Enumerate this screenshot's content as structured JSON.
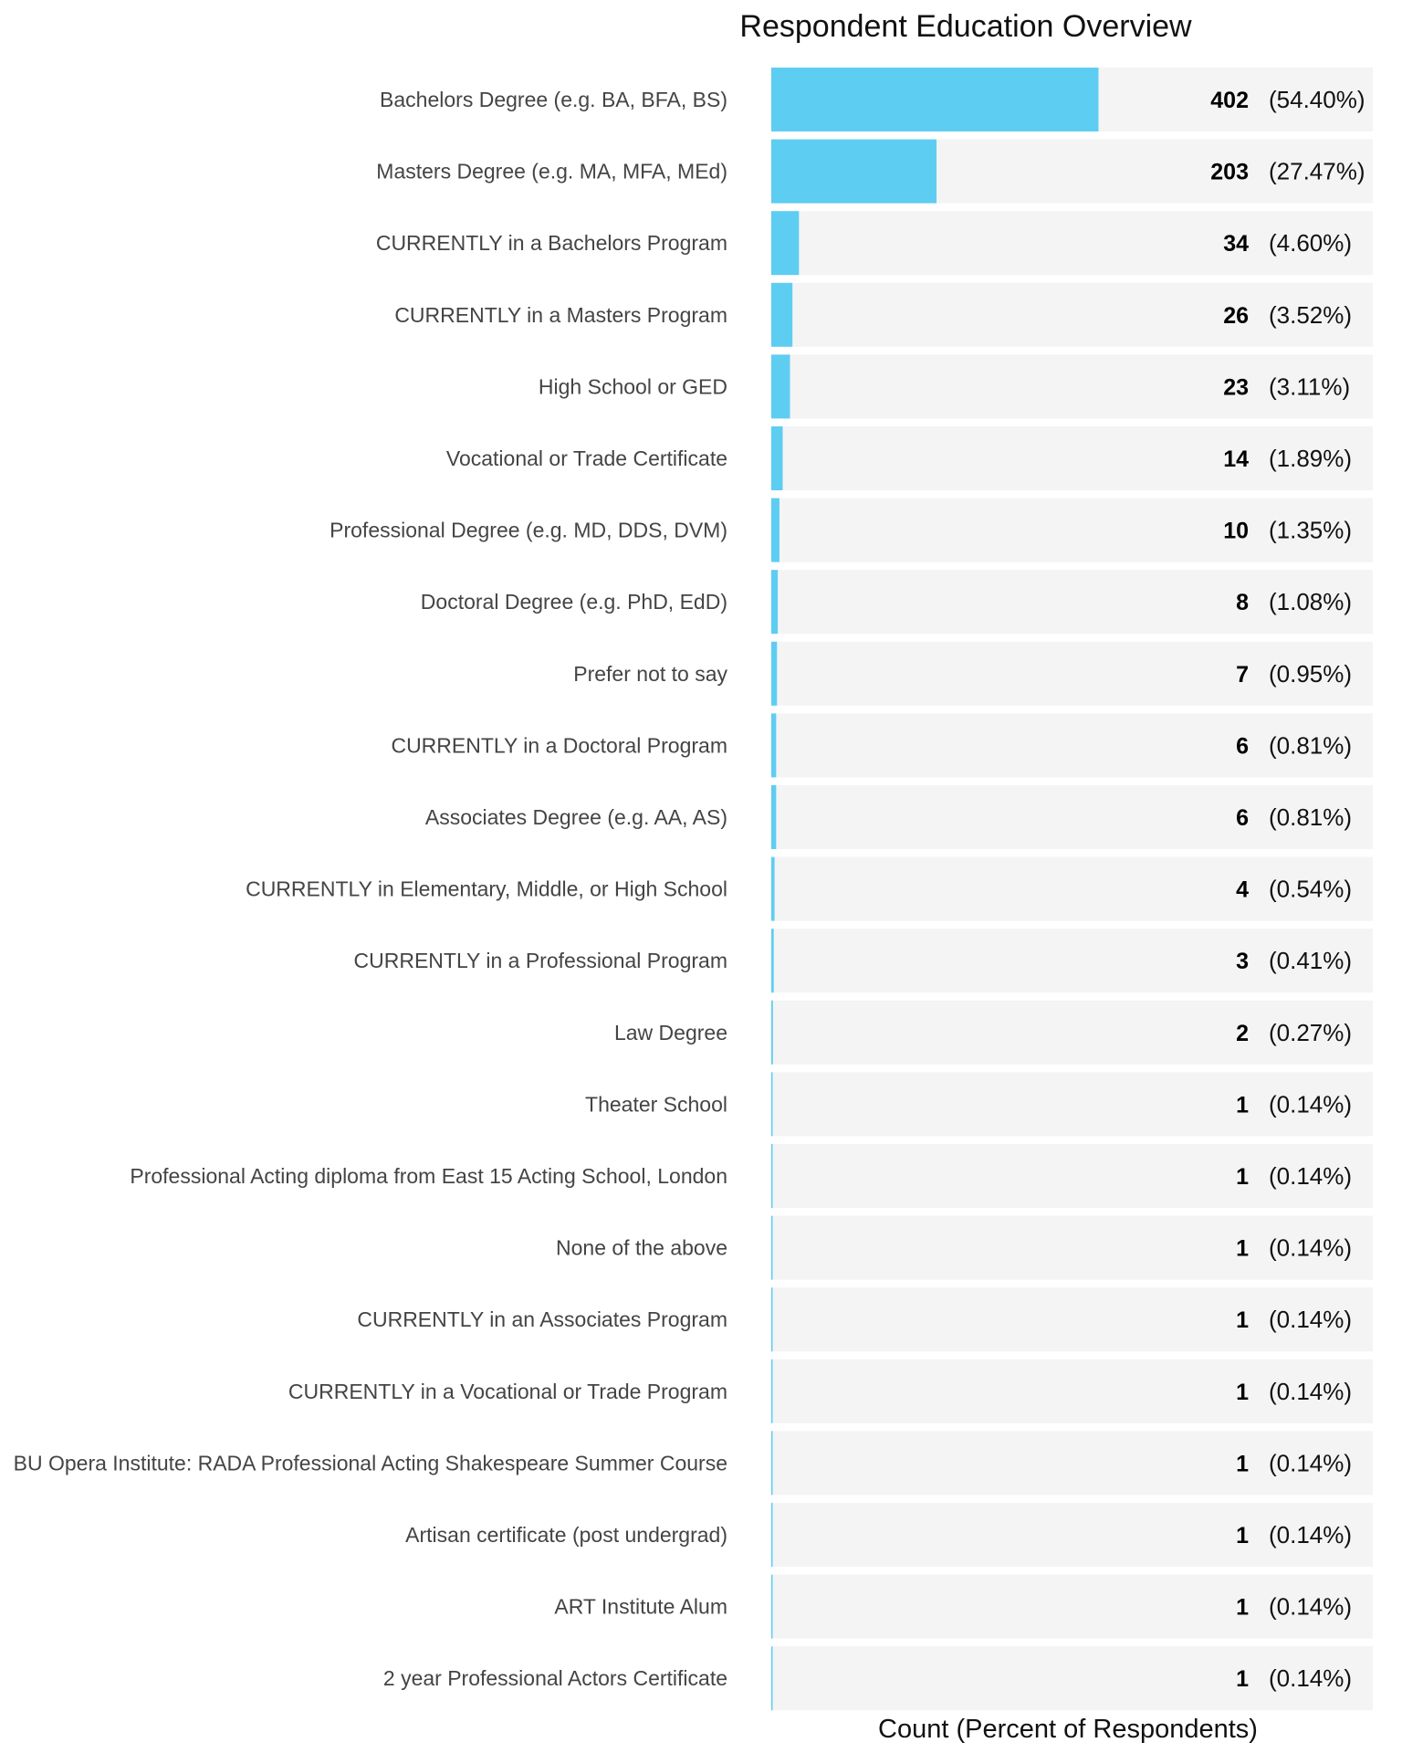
{
  "chart_data": {
    "type": "bar",
    "orientation": "horizontal",
    "title": "Respondent Education Overview",
    "xlabel": "Count (Percent of Respondents)",
    "ylabel": "",
    "xlim": [
      0,
      739
    ],
    "grid": false,
    "legend": "none",
    "colors": {
      "bar": "#5ECDF2",
      "track": "#F4F4F4",
      "text": "#444444"
    },
    "categories": [
      "Bachelors Degree (e.g. BA, BFA, BS)",
      "Masters Degree (e.g. MA, MFA, MEd)",
      "CURRENTLY in a Bachelors Program",
      "CURRENTLY in a Masters Program",
      "High School or GED",
      "Vocational or Trade Certificate",
      "Professional Degree (e.g. MD, DDS, DVM)",
      "Doctoral Degree (e.g. PhD, EdD)",
      "Prefer not to say",
      "CURRENTLY in a Doctoral Program",
      "Associates Degree (e.g. AA, AS)",
      "CURRENTLY in Elementary, Middle, or High School",
      "CURRENTLY in a Professional Program",
      "Law Degree",
      "Theater School",
      "Professional Acting diploma from East 15 Acting School, London",
      "None of the above",
      "CURRENTLY in an Associates Program",
      "CURRENTLY in a Vocational or Trade Program",
      "BU Opera Institute: RADA Professional Acting Shakespeare Summer Course",
      "Artisan certificate (post undergrad)",
      "ART Institute Alum",
      "2 year Professional Actors Certificate"
    ],
    "values": [
      402,
      203,
      34,
      26,
      23,
      14,
      10,
      8,
      7,
      6,
      6,
      4,
      3,
      2,
      1,
      1,
      1,
      1,
      1,
      1,
      1,
      1,
      1
    ],
    "percent_labels": [
      "(54.40%)",
      "(27.47%)",
      "(4.60%)",
      "(3.52%)",
      "(3.11%)",
      "(1.89%)",
      "(1.35%)",
      "(1.08%)",
      "(0.95%)",
      "(0.81%)",
      "(0.81%)",
      "(0.54%)",
      "(0.41%)",
      "(0.27%)",
      "(0.14%)",
      "(0.14%)",
      "(0.14%)",
      "(0.14%)",
      "(0.14%)",
      "(0.14%)",
      "(0.14%)",
      "(0.14%)",
      "(0.14%)"
    ]
  }
}
